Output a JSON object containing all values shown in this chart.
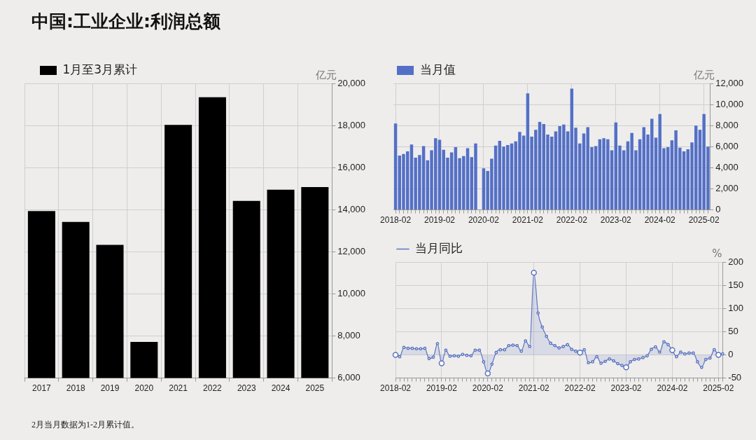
{
  "chart_data": [
    {
      "type": "bar",
      "title": "中国:工业企业:利润总额",
      "annotations": [
        "2月当月数据为1-2月累计值。"
      ],
      "categories": [
        "2017",
        "2018",
        "2019",
        "2020",
        "2021",
        "2022",
        "2023",
        "2024",
        "2025"
      ],
      "series": [
        {
          "name": "1月至3月累计",
          "color": "#000000",
          "values": [
            13930,
            13420,
            12330,
            7720,
            18030,
            19340,
            14420,
            14950,
            15070
          ]
        }
      ],
      "ylabel": "亿元",
      "ylim": [
        6000,
        20000
      ],
      "yticks": [
        {
          "value": 6000,
          "label": "6,000"
        },
        {
          "value": 8000,
          "label": "8,000"
        },
        {
          "value": 10000,
          "label": "10,000"
        },
        {
          "value": 12000,
          "label": "12,000"
        },
        {
          "value": 14000,
          "label": "14,000"
        },
        {
          "value": 16000,
          "label": "16,000"
        },
        {
          "value": 18000,
          "label": "18,000"
        },
        {
          "value": 20000,
          "label": "20,000"
        }
      ],
      "grid": true,
      "legend": "top left"
    },
    {
      "type": "bar",
      "categories": [
        "2018-02",
        null,
        null,
        null,
        null,
        null,
        null,
        null,
        null,
        null,
        null,
        "2019-02",
        null,
        null,
        null,
        null,
        null,
        null,
        null,
        null,
        null,
        null,
        "2020-02",
        null,
        null,
        null,
        null,
        null,
        null,
        null,
        null,
        null,
        null,
        "2021-02",
        null,
        null,
        null,
        null,
        null,
        null,
        null,
        null,
        null,
        null,
        "2022-02",
        null,
        null,
        null,
        null,
        null,
        null,
        null,
        null,
        null,
        null,
        "2023-02",
        null,
        null,
        null,
        null,
        null,
        null,
        null,
        null,
        null,
        null,
        "2024-02",
        null,
        null,
        null,
        null,
        null,
        null,
        null,
        null,
        null,
        null,
        "2025-02",
        null
      ],
      "series": [
        {
          "name": "当月值",
          "color": "#5470c6",
          "values": [
            8200,
            5150,
            5300,
            5550,
            6200,
            4950,
            5200,
            6050,
            4700,
            5650,
            6800,
            6650,
            5700,
            4950,
            5450,
            5950,
            4900,
            5100,
            5850,
            5000,
            6300,
            null,
            3950,
            3700,
            4850,
            6100,
            6550,
            6000,
            6150,
            6300,
            6500,
            7400,
            7050,
            11050,
            6950,
            7600,
            8350,
            8150,
            7150,
            6950,
            7450,
            7950,
            8100,
            7450,
            11500,
            7800,
            6300,
            7250,
            7850,
            5950,
            6050,
            6700,
            6800,
            6700,
            5650,
            8300,
            6100,
            5650,
            6500,
            7300,
            5650,
            6700,
            7850,
            7150,
            8650,
            6850,
            9100,
            5850,
            5950,
            6600,
            7550,
            5900,
            5550,
            5750,
            6400,
            8000,
            7600,
            9100,
            6000
          ]
        }
      ],
      "ylabel": "亿元",
      "ylim": [
        0,
        12000
      ],
      "yticks": [
        0,
        {
          "value": 2000,
          "label": "2,000"
        },
        {
          "value": 4000,
          "label": "4,000"
        },
        {
          "value": 6000,
          "label": "6,000"
        },
        {
          "value": 8000,
          "label": "8,000"
        },
        {
          "value": 10000,
          "label": "10,000"
        },
        {
          "value": 12000,
          "label": "12,000"
        }
      ],
      "grid": true,
      "legend": "top left"
    },
    {
      "type": "area",
      "categories": [
        "2018-02",
        null,
        null,
        null,
        null,
        null,
        null,
        null,
        null,
        null,
        null,
        "2019-02",
        null,
        null,
        null,
        null,
        null,
        null,
        null,
        null,
        null,
        null,
        "2020-02",
        null,
        null,
        null,
        null,
        null,
        null,
        null,
        null,
        null,
        null,
        "2021-02",
        null,
        null,
        null,
        null,
        null,
        null,
        null,
        null,
        null,
        null,
        "2022-02",
        null,
        null,
        null,
        null,
        null,
        null,
        null,
        null,
        null,
        null,
        "2023-02",
        null,
        null,
        null,
        null,
        null,
        null,
        null,
        null,
        null,
        null,
        "2024-02",
        null,
        null,
        null,
        null,
        null,
        null,
        null,
        null,
        null,
        null,
        "2025-02",
        null
      ],
      "series": [
        {
          "name": "当月同比",
          "color": "#5b74c0",
          "values": [
            0,
            -4,
            16,
            14,
            14,
            13,
            13,
            14,
            -8,
            -5,
            24,
            -18,
            10,
            -3,
            -2,
            -3,
            1,
            -1,
            -2,
            10,
            10,
            -15,
            -40,
            -20,
            5,
            11,
            11,
            20,
            21,
            20,
            8,
            30,
            18,
            177,
            90,
            60,
            40,
            25,
            20,
            15,
            18,
            22,
            12,
            8,
            5,
            11,
            -17,
            -15,
            -4,
            -18,
            -14,
            -9,
            -13,
            -19,
            -23,
            -27,
            -15,
            -10,
            -9,
            -6,
            -2,
            12,
            17,
            6,
            28,
            22,
            10,
            -4,
            6,
            2,
            4,
            4,
            -15,
            -27,
            -10,
            -7,
            11,
            0,
            2
          ]
        }
      ],
      "ylabel": "%",
      "ylim": [
        -50,
        200
      ],
      "yticks": [
        -50,
        0,
        50,
        100,
        150,
        200
      ],
      "grid": true,
      "legend": "top left",
      "marker": "circle"
    }
  ]
}
